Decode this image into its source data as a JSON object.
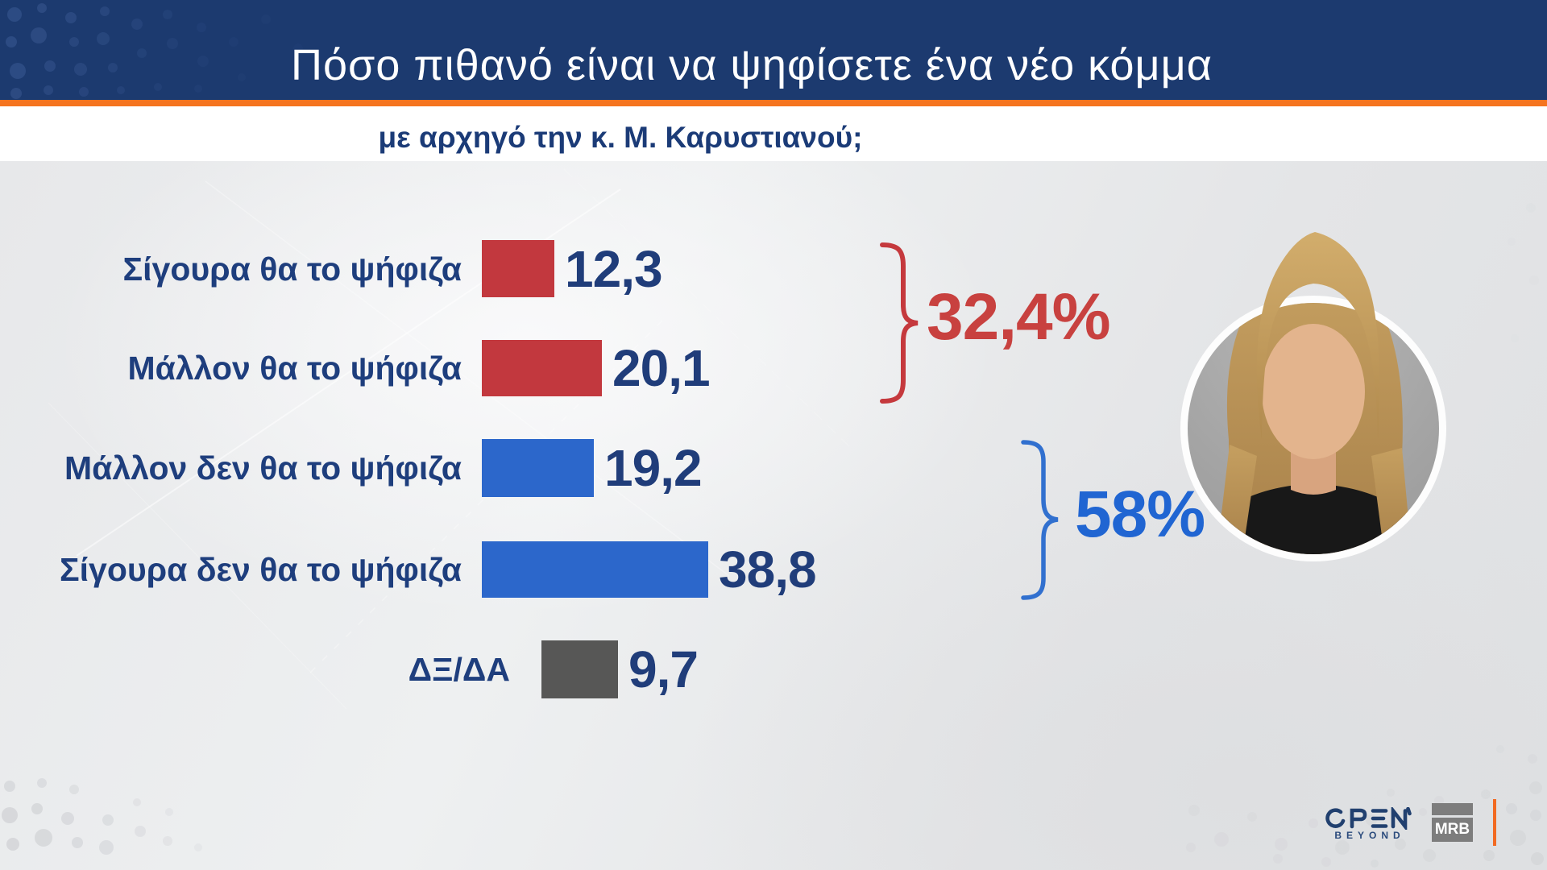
{
  "header": {
    "title": "Πόσο πιθανό είναι να ψηφίσετε ένα νέο κόμμα",
    "subtitle": "με αρχηγό την κ. Μ. Καρυστιανού;"
  },
  "chart_data": {
    "type": "bar",
    "orientation": "horizontal",
    "title": "Πόσο πιθανό είναι να ψηφίσετε ένα νέο κόμμα με αρχηγό την κ. Μ. Καρυστιανού;",
    "categories": [
      "Σίγουρα θα το ψήφιζα",
      "Μάλλον θα το ψήφιζα",
      "Μάλλον δεν θα το ψήφιζα",
      "Σίγουρα δεν θα το ψήφιζα",
      "ΔΞ/ΔΑ"
    ],
    "values": [
      12.3,
      20.1,
      19.2,
      38.8,
      9.7
    ],
    "value_labels": [
      "12,3",
      "20,1",
      "19,2",
      "38,8",
      "9,7"
    ],
    "bar_colors": [
      "#c2383e",
      "#c2383e",
      "#2c67cb",
      "#2c67cb",
      "#575756"
    ],
    "xlim": [
      0,
      40
    ],
    "grid": false,
    "legend": false,
    "groups": [
      {
        "label": "32,4%",
        "rows": [
          0,
          1
        ],
        "color": "#c8413f",
        "bracket_color": "#c5393d"
      },
      {
        "label": "58%",
        "rows": [
          2,
          3
        ],
        "color": "#2065d2",
        "bracket_color": "#3170cf"
      }
    ]
  },
  "colors": {
    "header_bg": "#1c3a6f",
    "accent_orange": "#f5741f",
    "label_navy": "#1e3e7d",
    "value_navy": "#203d7a"
  },
  "footer": {
    "open_logo": "OPEN",
    "open_tagline": "BEYOND",
    "mrb_logo": "MRB"
  }
}
